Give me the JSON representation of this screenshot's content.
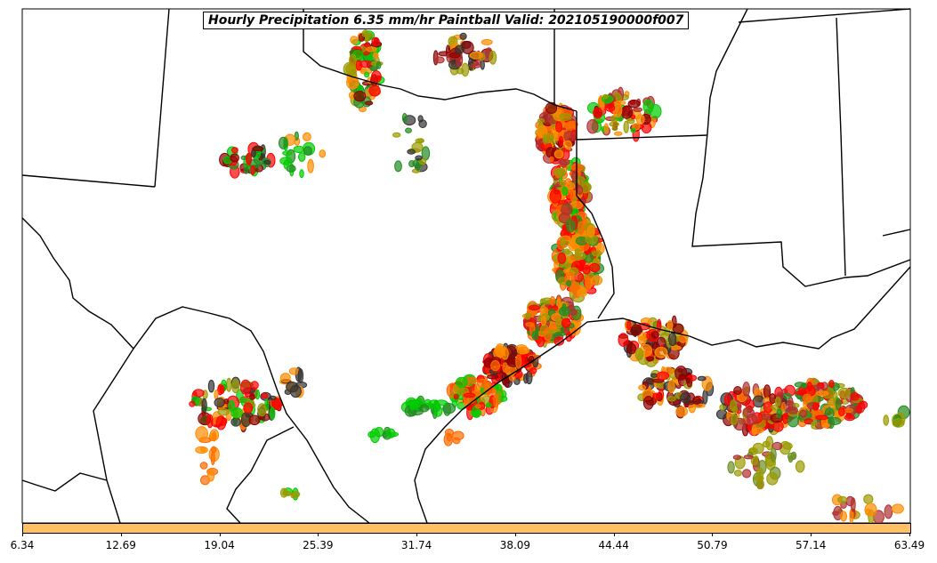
{
  "title": "Hourly Precipitation 6.35 mm/hr Paintball Valid: 202105190000f007",
  "colorbar": {
    "color": "#ffc164",
    "ticks": [
      "6.34",
      "12.69",
      "19.04",
      "25.39",
      "31.74",
      "38.09",
      "44.44",
      "50.79",
      "57.14",
      "63.49"
    ]
  },
  "palette": [
    "#ff0000",
    "#8b0000",
    "#ff8c00",
    "#ff6a00",
    "#228b22",
    "#00cc00",
    "#9a9a00",
    "#333333",
    "#b03030",
    "#6b8e23"
  ]
}
